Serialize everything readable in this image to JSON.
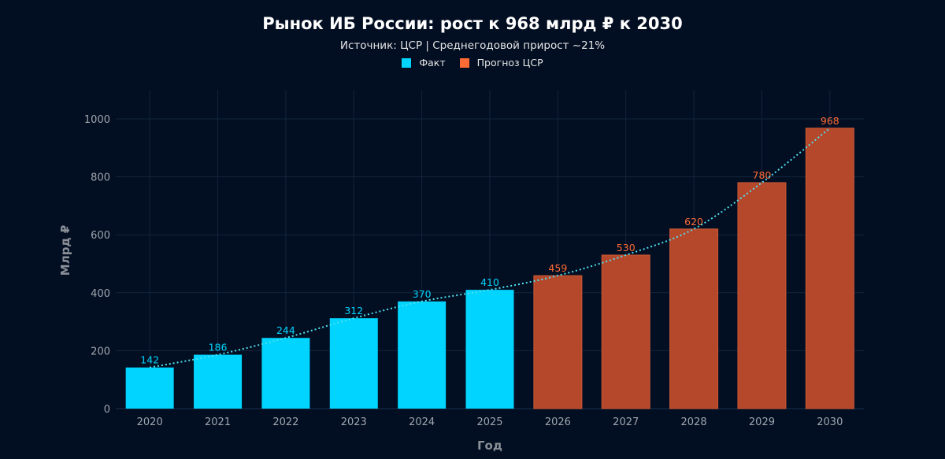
{
  "chart_data": {
    "type": "bar",
    "title": "Рынок ИБ России: рост к 968 млрд ₽ к 2030",
    "subtitle": "Источник: ЦСР | Среднегодовой прирост ~21%",
    "xlabel": "Год",
    "ylabel": "Млрд ₽",
    "categories": [
      "2020",
      "2021",
      "2022",
      "2023",
      "2024",
      "2025",
      "2026",
      "2027",
      "2028",
      "2029",
      "2030"
    ],
    "values": [
      142,
      186,
      244,
      312,
      370,
      410,
      459,
      530,
      620,
      780,
      968
    ],
    "series": [
      {
        "name": "Факт",
        "color": "#00d4ff",
        "categories": [
          "2020",
          "2021",
          "2022",
          "2023",
          "2024",
          "2025"
        ]
      },
      {
        "name": "Прогноз ЦСР",
        "color": "#ff6b35",
        "bar_color": "#b5482b",
        "categories": [
          "2026",
          "2027",
          "2028",
          "2029",
          "2030"
        ]
      }
    ],
    "trend_line": {
      "style": "dotted",
      "color": "#4fe0f0"
    },
    "yticks": [
      0,
      200,
      400,
      600,
      800,
      1000
    ],
    "ylim": [
      0,
      1100
    ],
    "grid": true,
    "legend_position": "top-center"
  }
}
